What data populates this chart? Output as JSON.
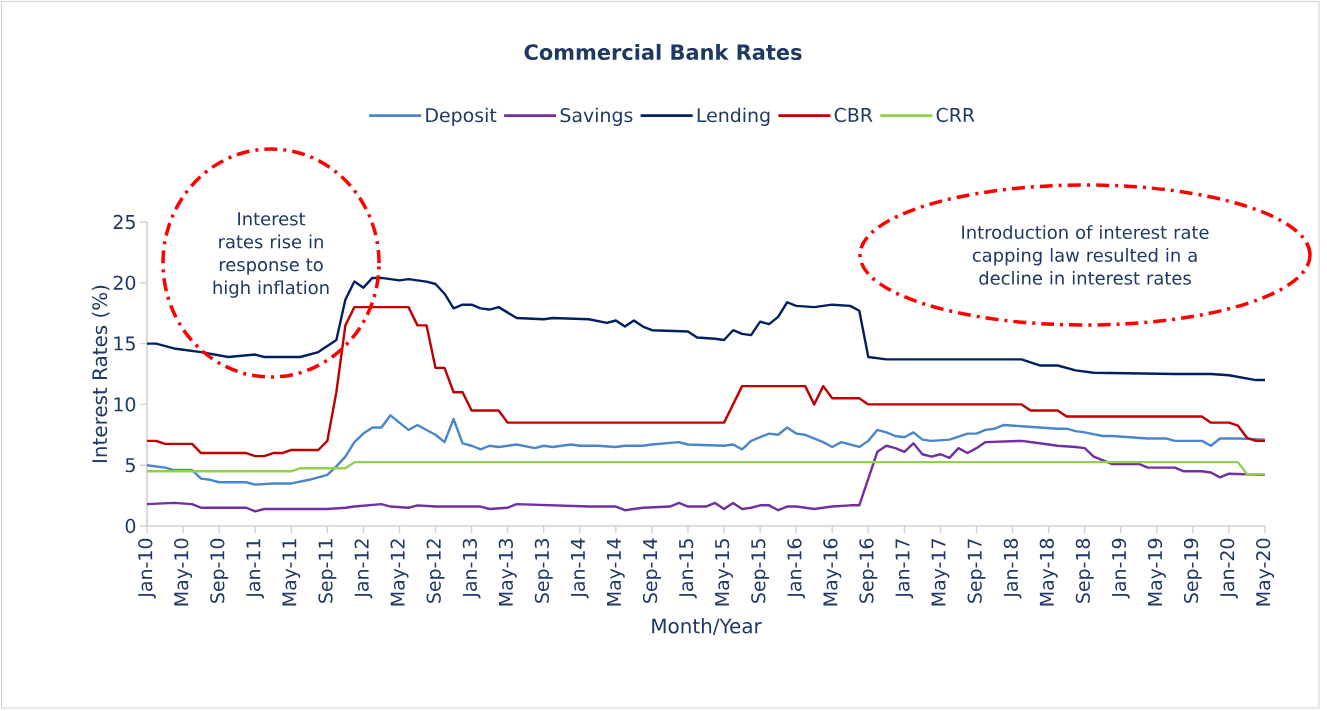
{
  "chart_data": {
    "type": "line",
    "title": "Commercial Bank Rates",
    "xlabel": "Month/Year",
    "ylabel": "Interest Rates (%)",
    "legend": "top",
    "annotations": [
      "Interest rates rise in response to high inflation",
      "Introduction of interest rate capping law resulted in a decline in interest rates"
    ],
    "xlim": [
      "2010-01",
      "2020-05"
    ],
    "ylim": [
      0,
      25
    ],
    "yticks": [
      0,
      5,
      10,
      15,
      20,
      25
    ],
    "xticks": [
      {
        "value": "2010-01",
        "label": "Jan-10"
      },
      {
        "value": "2010-05",
        "label": "May-10"
      },
      {
        "value": "2010-09",
        "label": "Sep-10"
      },
      {
        "value": "2011-01",
        "label": "Jan-11"
      },
      {
        "value": "2011-05",
        "label": "May-11"
      },
      {
        "value": "2011-09",
        "label": "Sep-11"
      },
      {
        "value": "2012-01",
        "label": "Jan-12"
      },
      {
        "value": "2012-05",
        "label": "May-12"
      },
      {
        "value": "2012-09",
        "label": "Sep-12"
      },
      {
        "value": "2013-01",
        "label": "Jan-13"
      },
      {
        "value": "2013-05",
        "label": "May-13"
      },
      {
        "value": "2013-09",
        "label": "Sep-13"
      },
      {
        "value": "2014-01",
        "label": "Jan-14"
      },
      {
        "value": "2014-05",
        "label": "May-14"
      },
      {
        "value": "2014-09",
        "label": "Sep-14"
      },
      {
        "value": "2015-01",
        "label": "Jan-15"
      },
      {
        "value": "2015-05",
        "label": "May-15"
      },
      {
        "value": "2015-09",
        "label": "Sep-15"
      },
      {
        "value": "2016-01",
        "label": "Jan-16"
      },
      {
        "value": "2016-05",
        "label": "May-16"
      },
      {
        "value": "2016-09",
        "label": "Sep-16"
      },
      {
        "value": "2017-01",
        "label": "Jan-17"
      },
      {
        "value": "2017-05",
        "label": "May-17"
      },
      {
        "value": "2017-09",
        "label": "Sep-17"
      },
      {
        "value": "2018-01",
        "label": "Jan-18"
      },
      {
        "value": "2018-05",
        "label": "May-18"
      },
      {
        "value": "2018-09",
        "label": "Sep-18"
      },
      {
        "value": "2019-01",
        "label": "Jan-19"
      },
      {
        "value": "2019-05",
        "label": "May-19"
      },
      {
        "value": "2019-09",
        "label": "Sep-19"
      },
      {
        "value": "2020-01",
        "label": "Jan-20"
      },
      {
        "value": "2020-05",
        "label": "May-20"
      }
    ],
    "series": [
      {
        "name": "Deposit",
        "color": "#4a86c8",
        "x": [
          "2010-01",
          "2010-03",
          "2010-04",
          "2010-06",
          "2010-07",
          "2010-08",
          "2010-09",
          "2010-12",
          "2011-01",
          "2011-03",
          "2011-05",
          "2011-07",
          "2011-09",
          "2011-10",
          "2011-11",
          "2011-12",
          "2012-01",
          "2012-02",
          "2012-03",
          "2012-04",
          "2012-05",
          "2012-06",
          "2012-07",
          "2012-08",
          "2012-09",
          "2012-10",
          "2012-11",
          "2012-12",
          "2013-01",
          "2013-02",
          "2013-03",
          "2013-04",
          "2013-06",
          "2013-08",
          "2013-09",
          "2013-10",
          "2013-12",
          "2014-01",
          "2014-03",
          "2014-05",
          "2014-06",
          "2014-08",
          "2014-09",
          "2014-12",
          "2015-01",
          "2015-05",
          "2015-06",
          "2015-07",
          "2015-08",
          "2015-09",
          "2015-10",
          "2015-11",
          "2015-12",
          "2016-01",
          "2016-02",
          "2016-03",
          "2016-04",
          "2016-05",
          "2016-06",
          "2016-07",
          "2016-08",
          "2016-09",
          "2016-10",
          "2016-11",
          "2016-12",
          "2017-01",
          "2017-02",
          "2017-03",
          "2017-04",
          "2017-06",
          "2017-08",
          "2017-09",
          "2017-10",
          "2017-11",
          "2017-12",
          "2018-02",
          "2018-06",
          "2018-07",
          "2018-08",
          "2018-09",
          "2018-11",
          "2018-12",
          "2019-04",
          "2019-06",
          "2019-07",
          "2019-08",
          "2019-10",
          "2019-11",
          "2019-12",
          "2020-02",
          "2020-05"
        ],
        "values": [
          5.0,
          4.8,
          4.6,
          4.6,
          3.9,
          3.8,
          3.6,
          3.6,
          3.4,
          3.5,
          3.5,
          3.8,
          4.2,
          4.9,
          5.7,
          6.9,
          7.6,
          8.1,
          8.1,
          9.1,
          8.5,
          7.9,
          8.3,
          7.9,
          7.5,
          6.9,
          8.8,
          6.8,
          6.6,
          6.3,
          6.6,
          6.5,
          6.7,
          6.4,
          6.6,
          6.5,
          6.7,
          6.6,
          6.6,
          6.5,
          6.6,
          6.6,
          6.7,
          6.9,
          6.7,
          6.6,
          6.7,
          6.3,
          7.0,
          7.3,
          7.6,
          7.5,
          8.1,
          7.6,
          7.5,
          7.2,
          6.9,
          6.5,
          6.9,
          6.7,
          6.5,
          7.0,
          7.9,
          7.7,
          7.4,
          7.3,
          7.7,
          7.1,
          7.0,
          7.1,
          7.6,
          7.6,
          7.9,
          8.0,
          8.3,
          8.2,
          8.0,
          8.0,
          7.8,
          7.7,
          7.4,
          7.4,
          7.2,
          7.2,
          7.0,
          7.0,
          7.0,
          6.6,
          7.2,
          7.2,
          7.1
        ]
      },
      {
        "name": "Savings",
        "color": "#7030a0",
        "x": [
          "2010-01",
          "2010-04",
          "2010-06",
          "2010-07",
          "2010-12",
          "2011-01",
          "2011-02",
          "2011-09",
          "2011-11",
          "2011-12",
          "2012-03",
          "2012-04",
          "2012-06",
          "2012-07",
          "2012-09",
          "2012-12",
          "2013-02",
          "2013-03",
          "2013-05",
          "2013-06",
          "2014-02",
          "2014-05",
          "2014-06",
          "2014-08",
          "2014-11",
          "2014-12",
          "2015-01",
          "2015-03",
          "2015-04",
          "2015-05",
          "2015-06",
          "2015-07",
          "2015-08",
          "2015-09",
          "2015-10",
          "2015-11",
          "2015-12",
          "2016-01",
          "2016-03",
          "2016-05",
          "2016-07",
          "2016-08",
          "2016-09",
          "2016-10",
          "2016-11",
          "2016-12",
          "2017-01",
          "2017-02",
          "2017-03",
          "2017-04",
          "2017-05",
          "2017-06",
          "2017-07",
          "2017-08",
          "2017-09",
          "2017-10",
          "2018-02",
          "2018-04",
          "2018-06",
          "2018-08",
          "2018-09",
          "2018-10",
          "2018-11",
          "2018-12",
          "2019-03",
          "2019-04",
          "2019-07",
          "2019-08",
          "2019-10",
          "2019-11",
          "2019-12",
          "2020-01",
          "2020-05"
        ],
        "values": [
          1.8,
          1.9,
          1.8,
          1.5,
          1.5,
          1.2,
          1.4,
          1.4,
          1.5,
          1.6,
          1.8,
          1.6,
          1.5,
          1.7,
          1.6,
          1.6,
          1.6,
          1.4,
          1.5,
          1.8,
          1.6,
          1.6,
          1.3,
          1.5,
          1.6,
          1.9,
          1.6,
          1.6,
          1.9,
          1.4,
          1.9,
          1.4,
          1.5,
          1.7,
          1.7,
          1.3,
          1.6,
          1.6,
          1.4,
          1.6,
          1.7,
          1.7,
          3.9,
          6.1,
          6.6,
          6.4,
          6.1,
          6.8,
          5.9,
          5.7,
          5.9,
          5.6,
          6.4,
          6.0,
          6.4,
          6.9,
          7.0,
          6.8,
          6.6,
          6.5,
          6.4,
          5.7,
          5.4,
          5.1,
          5.1,
          4.8,
          4.8,
          4.5,
          4.5,
          4.4,
          4.0,
          4.3,
          4.2
        ]
      },
      {
        "name": "Lending",
        "color": "#002060",
        "x": [
          "2010-01",
          "2010-02",
          "2010-04",
          "2010-07",
          "2010-10",
          "2011-01",
          "2011-02",
          "2011-06",
          "2011-08",
          "2011-10",
          "2011-11",
          "2011-12",
          "2012-01",
          "2012-02",
          "2012-03",
          "2012-05",
          "2012-06",
          "2012-08",
          "2012-09",
          "2012-10",
          "2012-11",
          "2012-12",
          "2013-01",
          "2013-02",
          "2013-03",
          "2013-04",
          "2013-06",
          "2013-09",
          "2013-10",
          "2014-02",
          "2014-04",
          "2014-05",
          "2014-06",
          "2014-07",
          "2014-08",
          "2014-09",
          "2015-01",
          "2015-02",
          "2015-04",
          "2015-05",
          "2015-06",
          "2015-07",
          "2015-08",
          "2015-09",
          "2015-10",
          "2015-11",
          "2015-12",
          "2016-01",
          "2016-03",
          "2016-05",
          "2016-07",
          "2016-08",
          "2016-09",
          "2016-11",
          "2018-02",
          "2018-04",
          "2018-06",
          "2018-08",
          "2018-10",
          "2019-07",
          "2019-11",
          "2020-01",
          "2020-04",
          "2020-05"
        ],
        "values": [
          15.0,
          15.0,
          14.6,
          14.3,
          13.9,
          14.1,
          13.9,
          13.9,
          14.3,
          15.3,
          18.6,
          20.1,
          19.6,
          20.4,
          20.4,
          20.2,
          20.3,
          20.1,
          19.9,
          19.1,
          17.9,
          18.2,
          18.2,
          17.9,
          17.8,
          18.0,
          17.1,
          17.0,
          17.1,
          17.0,
          16.7,
          16.9,
          16.4,
          16.9,
          16.4,
          16.1,
          16.0,
          15.5,
          15.4,
          15.3,
          16.1,
          15.8,
          15.7,
          16.8,
          16.6,
          17.2,
          18.4,
          18.1,
          18.0,
          18.2,
          18.1,
          17.7,
          13.9,
          13.7,
          13.7,
          13.2,
          13.2,
          12.8,
          12.6,
          12.5,
          12.5,
          12.4,
          12.0,
          12.0
        ]
      },
      {
        "name": "CBR",
        "color": "#c00000",
        "x": [
          "2010-01",
          "2010-02",
          "2010-03",
          "2010-06",
          "2010-07",
          "2010-12",
          "2011-01",
          "2011-02",
          "2011-03",
          "2011-04",
          "2011-05",
          "2011-08",
          "2011-09",
          "2011-10",
          "2011-11",
          "2011-12",
          "2012-06",
          "2012-07",
          "2012-08",
          "2012-09",
          "2012-10",
          "2012-11",
          "2012-12",
          "2013-01",
          "2013-04",
          "2013-05",
          "2015-05",
          "2015-07",
          "2016-02",
          "2016-03",
          "2016-04",
          "2016-05",
          "2016-08",
          "2016-09",
          "2018-02",
          "2018-03",
          "2018-06",
          "2018-07",
          "2019-10",
          "2019-11",
          "2020-01",
          "2020-02",
          "2020-03",
          "2020-04",
          "2020-05"
        ],
        "values": [
          7.0,
          7.0,
          6.75,
          6.75,
          6.0,
          6.0,
          5.75,
          5.75,
          6.0,
          6.0,
          6.25,
          6.25,
          7.0,
          11.0,
          16.5,
          18.0,
          18.0,
          16.5,
          16.5,
          13.0,
          13.0,
          11.0,
          11.0,
          9.5,
          9.5,
          8.5,
          8.5,
          11.5,
          11.5,
          10.0,
          11.5,
          10.5,
          10.5,
          10.0,
          10.0,
          9.5,
          9.5,
          9.0,
          9.0,
          8.5,
          8.5,
          8.25,
          7.25,
          7.0,
          7.0
        ]
      },
      {
        "name": "CRR",
        "color": "#92d050",
        "x": [
          "2010-01",
          "2011-05",
          "2011-06",
          "2011-11",
          "2011-12",
          "2020-02",
          "2020-03",
          "2020-05"
        ],
        "values": [
          4.5,
          4.5,
          4.75,
          4.75,
          5.25,
          5.25,
          4.25,
          4.25
        ]
      }
    ]
  }
}
